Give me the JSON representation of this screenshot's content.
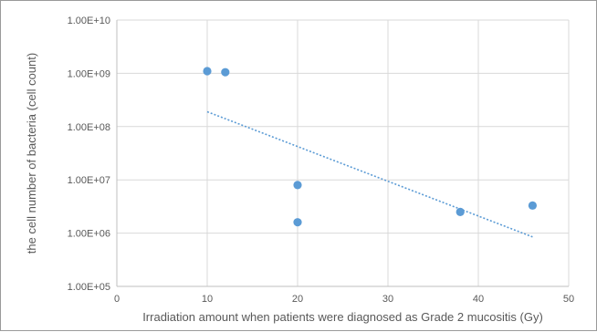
{
  "chart_data": {
    "type": "scatter",
    "title": "",
    "xlabel": "Irradiation amount when patients were diagnosed as Grade 2 mucositis (Gy)",
    "ylabel": "the cell number of bacteria (cell count)",
    "xlim": [
      0,
      50
    ],
    "ylim": [
      100000,
      10000000000
    ],
    "yscale": "log",
    "grid": true,
    "x_ticks": [
      0,
      10,
      20,
      30,
      40,
      50
    ],
    "x_tick_labels": [
      "0",
      "10",
      "20",
      "30",
      "40",
      "50"
    ],
    "y_ticks": [
      100000,
      1000000,
      10000000,
      100000000,
      1000000000,
      10000000000
    ],
    "y_tick_labels": [
      "1.00E+05",
      "1.00E+06",
      "1.00E+07",
      "1.00E+08",
      "1.00E+09",
      "1.00E+10"
    ],
    "series": [
      {
        "color": "#5b9bd5",
        "points": [
          {
            "x": 10,
            "y": 1100000000
          },
          {
            "x": 12,
            "y": 1050000000
          },
          {
            "x": 20,
            "y": 8000000
          },
          {
            "x": 20,
            "y": 1600000
          },
          {
            "x": 38,
            "y": 2500000
          },
          {
            "x": 46,
            "y": 3300000
          }
        ]
      }
    ],
    "trendline": {
      "type": "exponential",
      "style": "dotted",
      "color": "#5b9bd5",
      "x": [
        10,
        46
      ],
      "y": [
        190000000,
        850000
      ]
    }
  }
}
